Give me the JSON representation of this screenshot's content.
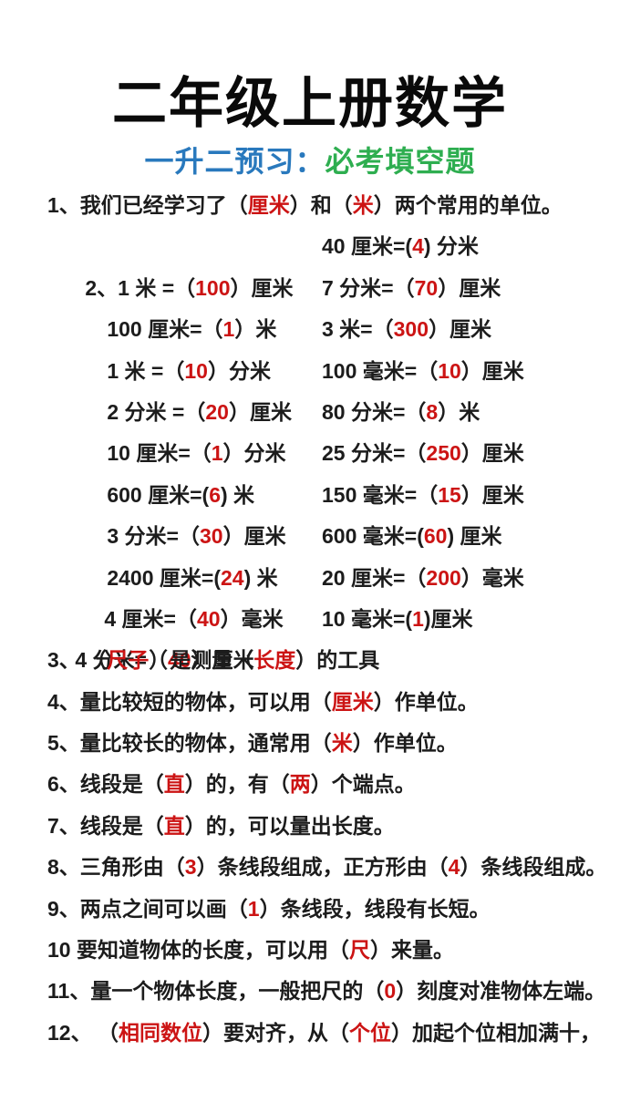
{
  "page": {
    "title": "二年级上册数学",
    "subtitle": {
      "prefix": "一升二预习：",
      "highlight": "必考填空题"
    },
    "colors": {
      "page_bg": "#ffffff",
      "title_color": "#0a0a0a",
      "body_text": "#1c1c1c",
      "answer_red": "#cc1414",
      "subtitle_blue": "#2979bd",
      "subtitle_green": "#2eae50"
    }
  },
  "questions": {
    "q1": {
      "segments": [
        {
          "t": "1、我们已经学习了（"
        },
        {
          "t": "厘米",
          "c": "red"
        },
        {
          "t": "）和（"
        },
        {
          "t": "米",
          "c": "red"
        },
        {
          "t": "）两个常用的单位。"
        }
      ]
    },
    "conversions": {
      "rows": [
        {
          "left": [
            {
              "t": "2、1 米 =（"
            },
            {
              "t": "100",
              "c": "red"
            },
            {
              "t": "）厘米"
            }
          ],
          "right": [
            {
              "t": "40 厘米=("
            },
            {
              "t": "4",
              "c": "red"
            },
            {
              "t": ") 分米"
            }
          ]
        },
        {
          "left": [
            {
              "t": "100 厘米=（"
            },
            {
              "t": "1",
              "c": "red"
            },
            {
              "t": "）米"
            }
          ],
          "right": [
            {
              "t": "7 分米=（"
            },
            {
              "t": "70",
              "c": "red"
            },
            {
              "t": "）厘米"
            }
          ]
        },
        {
          "left": [
            {
              "t": "1 米 =（"
            },
            {
              "t": "10",
              "c": "red"
            },
            {
              "t": "）分米"
            }
          ],
          "right": [
            {
              "t": "3 米=（"
            },
            {
              "t": "300",
              "c": "red"
            },
            {
              "t": "）厘米"
            }
          ]
        },
        {
          "left": [
            {
              "t": "2 分米 =（"
            },
            {
              "t": "20",
              "c": "red"
            },
            {
              "t": "）厘米"
            }
          ],
          "right": [
            {
              "t": "100 毫米=（"
            },
            {
              "t": "10",
              "c": "red"
            },
            {
              "t": "）厘米"
            }
          ]
        },
        {
          "left": [
            {
              "t": "10 厘米=（"
            },
            {
              "t": "1",
              "c": "red"
            },
            {
              "t": "）分米"
            }
          ],
          "right": [
            {
              "t": "80 分米=（"
            },
            {
              "t": "8",
              "c": "red"
            },
            {
              "t": "）米"
            }
          ]
        },
        {
          "left": [
            {
              "t": "600 厘米=("
            },
            {
              "t": "6",
              "c": "red"
            },
            {
              "t": ") 米"
            }
          ],
          "right": [
            {
              "t": "25 分米=（"
            },
            {
              "t": "250",
              "c": "red"
            },
            {
              "t": "）厘米"
            }
          ]
        },
        {
          "left": [
            {
              "t": "3 分米=（"
            },
            {
              "t": "30",
              "c": "red"
            },
            {
              "t": "）厘米"
            }
          ],
          "right": [
            {
              "t": "150 毫米=（"
            },
            {
              "t": "15",
              "c": "red"
            },
            {
              "t": "）厘米"
            }
          ]
        },
        {
          "left": [
            {
              "t": "2400 厘米=("
            },
            {
              "t": "24",
              "c": "red"
            },
            {
              "t": ") 米"
            }
          ],
          "right": [
            {
              "t": "600 毫米=("
            },
            {
              "t": "60",
              "c": "red"
            },
            {
              "t": ") 厘米"
            }
          ]
        },
        {
          "left": [
            {
              "t": "4 厘米=（"
            },
            {
              "t": "40",
              "c": "red"
            },
            {
              "t": "）毫米"
            }
          ],
          "right": [
            {
              "t": "20 厘米=（"
            },
            {
              "t": "200",
              "c": "red"
            },
            {
              "t": "）毫米"
            }
          ]
        },
        {
          "left": [
            {
              "t": "4 分米=（"
            },
            {
              "t": "40",
              "c": "red"
            },
            {
              "t": "）厘米"
            }
          ],
          "right": [
            {
              "t": "10 毫米=("
            },
            {
              "t": "1",
              "c": "red"
            },
            {
              "t": ")厘米"
            }
          ]
        }
      ]
    },
    "q3": {
      "segments": [
        {
          "t": "3、 （"
        },
        {
          "t": "尺子",
          "c": "red"
        },
        {
          "t": "）是测量（"
        },
        {
          "t": "长度",
          "c": "red"
        },
        {
          "t": "）的工具"
        }
      ]
    },
    "q4": {
      "segments": [
        {
          "t": "4、量比较短的物体，可以用（"
        },
        {
          "t": "厘米",
          "c": "red"
        },
        {
          "t": "）作单位。"
        }
      ]
    },
    "q5": {
      "segments": [
        {
          "t": "5、量比较长的物体，通常用（"
        },
        {
          "t": "米",
          "c": "red"
        },
        {
          "t": "）作单位。"
        }
      ]
    },
    "q6": {
      "segments": [
        {
          "t": "6、线段是（"
        },
        {
          "t": "直",
          "c": "red"
        },
        {
          "t": "）的，有（"
        },
        {
          "t": "两",
          "c": "red"
        },
        {
          "t": "）个端点。"
        }
      ]
    },
    "q7": {
      "segments": [
        {
          "t": "7、线段是（"
        },
        {
          "t": "直",
          "c": "red"
        },
        {
          "t": "）的，可以量出长度。"
        }
      ]
    },
    "q8": {
      "segments": [
        {
          "t": "8、三角形由（"
        },
        {
          "t": "3",
          "c": "red"
        },
        {
          "t": "）条线段组成，正方形由（"
        },
        {
          "t": "4",
          "c": "red"
        },
        {
          "t": "）条线段组成。"
        }
      ]
    },
    "q9": {
      "segments": [
        {
          "t": "9、两点之间可以画（"
        },
        {
          "t": "1",
          "c": "red"
        },
        {
          "t": "）条线段，线段有长短。"
        }
      ]
    },
    "q10": {
      "segments": [
        {
          "t": "10 要知道物体的长度，可以用（"
        },
        {
          "t": "尺",
          "c": "red"
        },
        {
          "t": "）来量。"
        }
      ]
    },
    "q11": {
      "segments": [
        {
          "t": "11、量一个物体长度，一般把尺的（"
        },
        {
          "t": "0",
          "c": "red"
        },
        {
          "t": "）刻度对准物体左端。"
        }
      ]
    },
    "q12": {
      "segments": [
        {
          "t": "12、 （"
        },
        {
          "t": "相同数位",
          "c": "red"
        },
        {
          "t": "）要对齐，从（"
        },
        {
          "t": "个位",
          "c": "red"
        },
        {
          "t": "）加起个位相加满十，"
        }
      ]
    }
  }
}
